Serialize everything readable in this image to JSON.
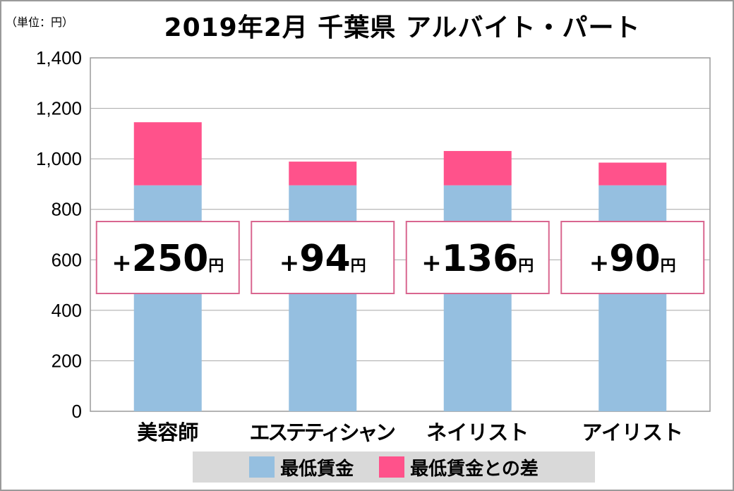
{
  "unit_label": "（単位：円）",
  "title": "2019年2月 千葉県 アルバイト・パート",
  "chart_data": {
    "type": "bar",
    "stacked": true,
    "categories": [
      "美容師",
      "エステティシャン",
      "ネイリスト",
      "アイリスト"
    ],
    "series": [
      {
        "name": "最低賃金",
        "values": [
          895,
          895,
          895,
          895
        ],
        "color": "#95bfe0"
      },
      {
        "name": "最低賃金との差",
        "values": [
          250,
          94,
          136,
          90
        ],
        "color": "#ff528b"
      }
    ],
    "annotations": [
      {
        "sign": "+",
        "number": "250",
        "unit": "円"
      },
      {
        "sign": "+",
        "number": "94",
        "unit": "円"
      },
      {
        "sign": "+",
        "number": "136",
        "unit": "円"
      },
      {
        "sign": "+",
        "number": "90",
        "unit": "円"
      }
    ],
    "ylim": [
      0,
      1400
    ],
    "yticks": [
      0,
      200,
      400,
      600,
      800,
      1000,
      1200,
      1400
    ],
    "ytick_labels": [
      "0",
      "200",
      "400",
      "600",
      "800",
      "1,000",
      "1,200",
      "1,400"
    ],
    "grid": true,
    "legend_position": "bottom",
    "annotation_border_color": "#d9668f"
  }
}
